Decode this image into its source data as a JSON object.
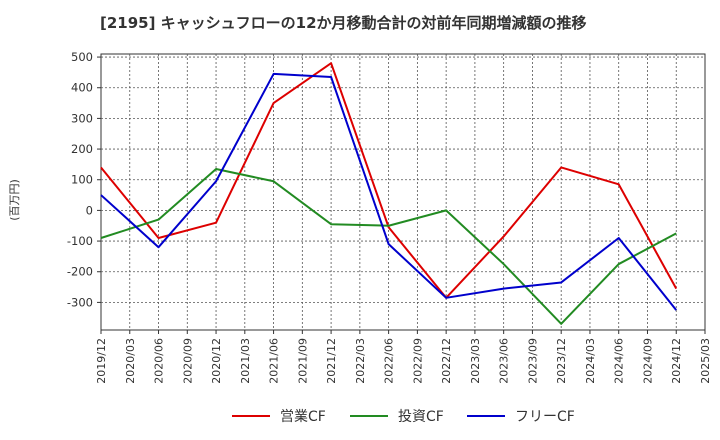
{
  "chart_data": {
    "type": "line",
    "title": "[2195]  キャッシュフローの12か月移動合計の対前年同期増減額の推移",
    "ylabel": "(百万円)",
    "xlabel": "",
    "ylim": [
      -390,
      510
    ],
    "yticks": [
      -300,
      -200,
      -100,
      0,
      100,
      200,
      300,
      400,
      500
    ],
    "categories": [
      "2019/12",
      "2020/03",
      "2020/06",
      "2020/09",
      "2020/12",
      "2021/03",
      "2021/06",
      "2021/09",
      "2021/12",
      "2022/03",
      "2022/06",
      "2022/09",
      "2022/12",
      "2023/03",
      "2023/06",
      "2023/09",
      "2023/12",
      "2024/03",
      "2024/06",
      "2024/09",
      "2024/12",
      "2025/03"
    ],
    "series": [
      {
        "name": "営業CF",
        "color": "#dd0000",
        "points": [
          [
            "2019/12",
            140
          ],
          [
            "2020/06",
            -90
          ],
          [
            "2020/12",
            -40
          ],
          [
            "2021/06",
            350
          ],
          [
            "2021/12",
            480
          ],
          [
            "2022/06",
            -55
          ],
          [
            "2022/12",
            -285
          ],
          [
            "2023/06",
            -85
          ],
          [
            "2023/12",
            140
          ],
          [
            "2024/06",
            85
          ],
          [
            "2024/12",
            -255
          ]
        ]
      },
      {
        "name": "投資CF",
        "color": "#228b22",
        "points": [
          [
            "2019/12",
            -90
          ],
          [
            "2020/06",
            -30
          ],
          [
            "2020/12",
            135
          ],
          [
            "2021/06",
            95
          ],
          [
            "2021/12",
            -45
          ],
          [
            "2022/06",
            -50
          ],
          [
            "2022/12",
            0
          ],
          [
            "2023/06",
            -175
          ],
          [
            "2023/12",
            -370
          ],
          [
            "2024/06",
            -175
          ],
          [
            "2024/12",
            -75
          ]
        ]
      },
      {
        "name": "フリーCF",
        "color": "#0000cc",
        "points": [
          [
            "2019/12",
            50
          ],
          [
            "2020/06",
            -120
          ],
          [
            "2020/12",
            95
          ],
          [
            "2021/06",
            445
          ],
          [
            "2021/12",
            435
          ],
          [
            "2022/06",
            -110
          ],
          [
            "2022/12",
            -285
          ],
          [
            "2023/06",
            -255
          ],
          [
            "2023/12",
            -235
          ],
          [
            "2024/06",
            -90
          ],
          [
            "2024/12",
            -325
          ]
        ]
      }
    ]
  }
}
